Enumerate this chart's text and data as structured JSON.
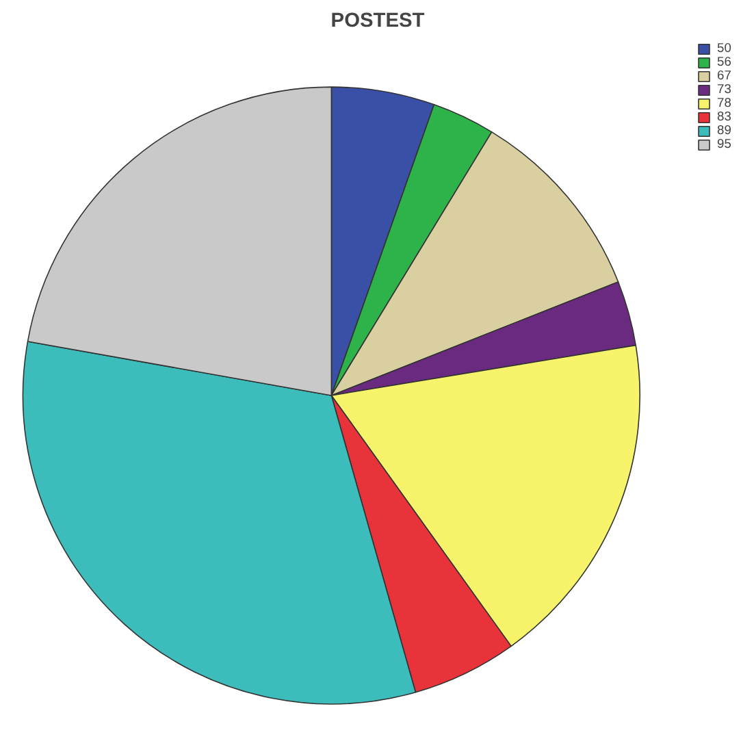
{
  "chart_data": {
    "type": "pie",
    "title": "POSTEST",
    "categories": [
      "50",
      "56",
      "67",
      "73",
      "78",
      "83",
      "89",
      "95"
    ],
    "values": [
      5.4,
      3.3,
      10.3,
      3.4,
      17.7,
      5.5,
      32.2,
      22.2
    ],
    "colors": [
      "#3a4fa6",
      "#2db34a",
      "#d9cfa0",
      "#6a2a7f",
      "#f7f46b",
      "#e8333a",
      "#3dbcbc",
      "#c9c9c9"
    ],
    "legend": "top right"
  }
}
